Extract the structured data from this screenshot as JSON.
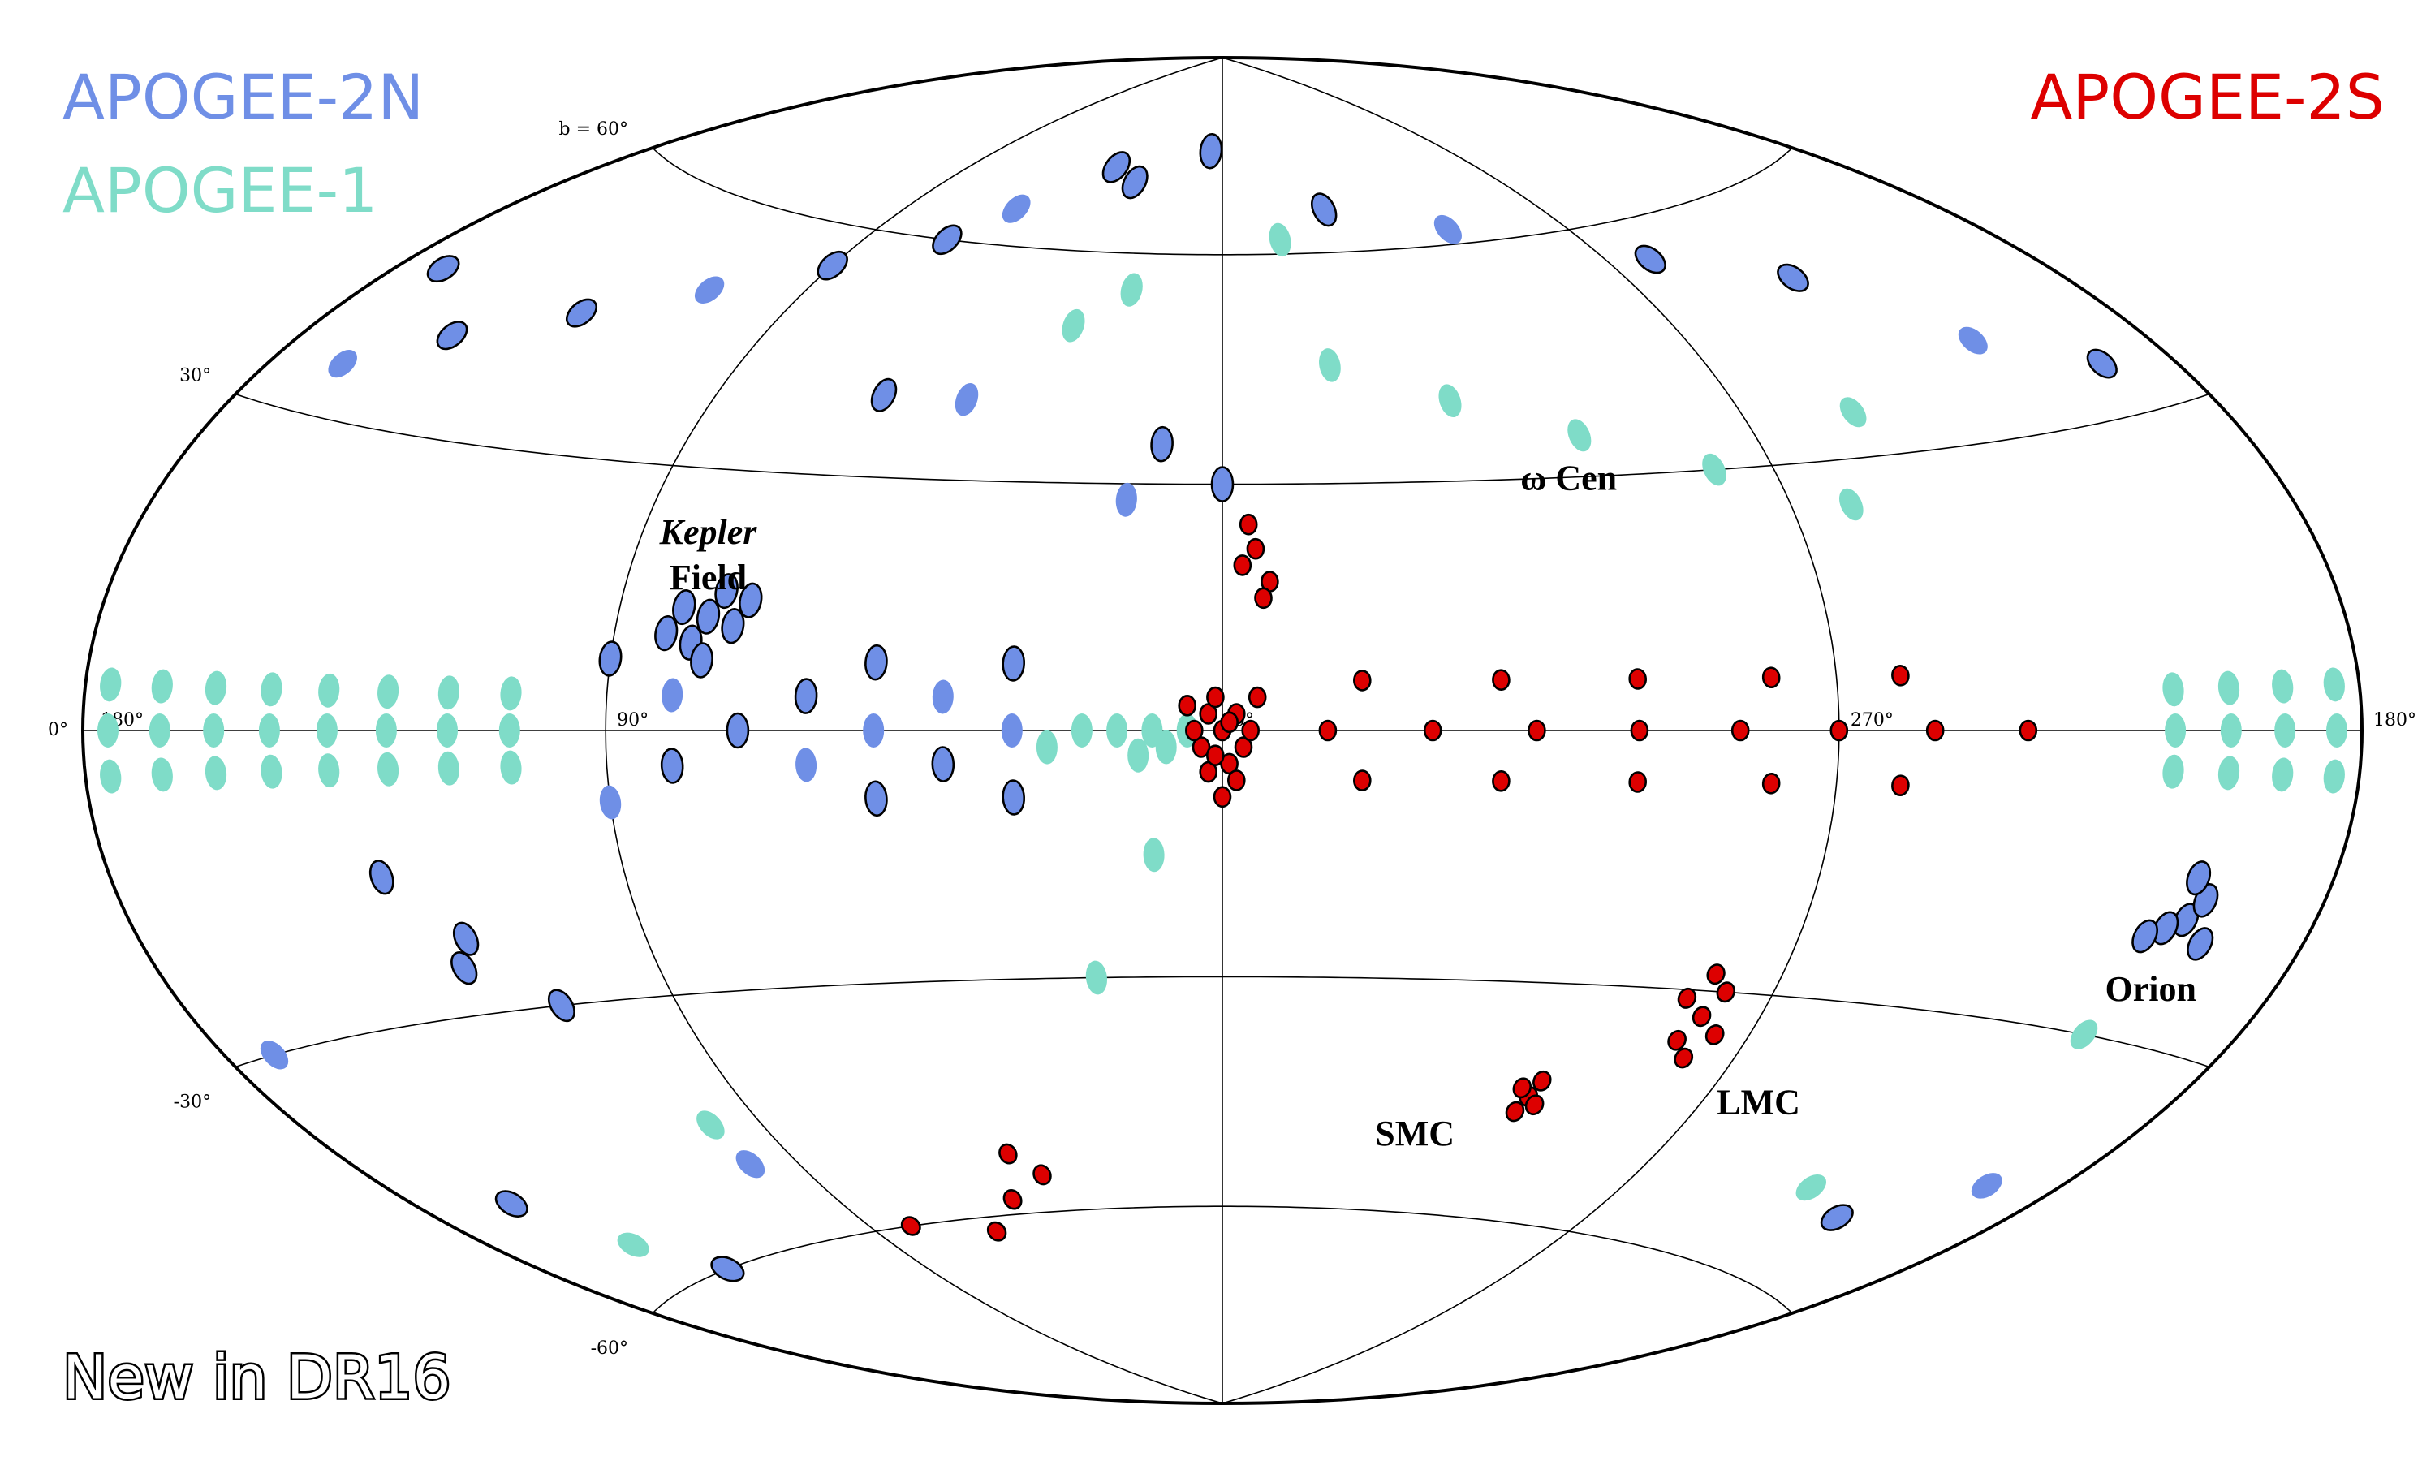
{
  "chart_data": {
    "type": "sky-map",
    "projection": "hammer",
    "lat_ticks": [
      {
        "value": 60,
        "label": "b = 60°"
      },
      {
        "value": 30,
        "label": "30°"
      },
      {
        "value": 0,
        "label": "0°"
      },
      {
        "value": -30,
        "label": "-30°"
      },
      {
        "value": -60,
        "label": "-60°"
      }
    ],
    "lon_ticks": [
      {
        "value": 180,
        "label": "180°"
      },
      {
        "value": 90,
        "label": "90°"
      },
      {
        "value": 0,
        "label": "0°"
      },
      {
        "value": 270,
        "label": "270°"
      },
      {
        "value": 180,
        "label": "180°"
      }
    ],
    "series": [
      {
        "name": "APOGEE-2N",
        "color": "#6f8fe6",
        "l": [
          76,
          72,
          80,
          74,
          78,
          70,
          82,
          76,
          30,
          30,
          30,
          40,
          40,
          50,
          50,
          50,
          60,
          60,
          70,
          80,
          80,
          90,
          90,
          205,
          208,
          211,
          203,
          206,
          200,
          30,
          40,
          60,
          70,
          90,
          110,
          130,
          150,
          165,
          170,
          195,
          215,
          235,
          260,
          300,
          330,
          5,
          15,
          10,
          0,
          45,
          60,
          120,
          123,
          100,
          140,
          160,
          195,
          215,
          170,
          130,
          110
        ],
        "b": [
          13,
          12,
          14,
          16,
          10,
          15,
          11,
          8,
          8,
          0,
          -8,
          4,
          -4,
          8,
          0,
          -8,
          4,
          -4,
          0,
          4,
          -4,
          8,
          -8,
          -18,
          -19,
          -20,
          -16,
          -14,
          -20,
          70,
          72,
          65,
          60,
          55,
          50,
          45,
          40,
          35,
          45,
          35,
          40,
          50,
          55,
          62,
          66,
          75,
          28,
          35,
          30,
          40,
          40,
          -22,
          -25,
          -50,
          -60,
          -48,
          -45,
          -52,
          -30,
          -15,
          -30
        ],
        "new": [
          true,
          true,
          true,
          true,
          true,
          true,
          true,
          true,
          true,
          false,
          true,
          false,
          true,
          true,
          false,
          true,
          true,
          false,
          true,
          false,
          true,
          true,
          false,
          true,
          true,
          true,
          true,
          true,
          true,
          true,
          true,
          false,
          true,
          true,
          false,
          true,
          true,
          false,
          true,
          true,
          false,
          true,
          true,
          false,
          true,
          true,
          false,
          true,
          true,
          false,
          true,
          true,
          true,
          false,
          true,
          true,
          false,
          true,
          false,
          true,
          true
        ]
      },
      {
        "name": "APOGEE-1",
        "color": "#7fdcc8",
        "l": [
          175,
          175,
          175,
          165,
          165,
          165,
          155,
          155,
          155,
          145,
          145,
          145,
          135,
          135,
          135,
          125,
          125,
          125,
          115,
          115,
          115,
          105,
          105,
          105,
          185,
          185,
          185,
          195,
          195,
          195,
          205,
          205,
          205,
          215,
          215,
          215,
          5,
          10,
          15,
          20,
          25,
          8,
          12,
          340,
          320,
          300,
          280,
          260,
          20,
          30,
          100,
          150,
          210,
          230,
          250,
          345,
          10,
          20
        ],
        "b": [
          4,
          0,
          -4,
          4,
          0,
          -4,
          4,
          0,
          -4,
          4,
          0,
          -4,
          4,
          0,
          -4,
          4,
          0,
          -4,
          4,
          0,
          -4,
          4,
          0,
          -4,
          4,
          0,
          -4,
          4,
          0,
          -4,
          4,
          0,
          -4,
          4,
          0,
          -4,
          0,
          0,
          0,
          0,
          -2,
          -2,
          -3,
          45,
          40,
          35,
          30,
          25,
          55,
          50,
          -45,
          -55,
          -30,
          -50,
          35,
          62,
          -15,
          -30
        ],
        "new": [
          false,
          false,
          false,
          false,
          false,
          false,
          false,
          false,
          false,
          false,
          false,
          false,
          false,
          false,
          false,
          false,
          false,
          false,
          false,
          false,
          false,
          false,
          false,
          false,
          false,
          false,
          false,
          false,
          false,
          false,
          false,
          false,
          false,
          false,
          false,
          false,
          false,
          false,
          false,
          false,
          false,
          false,
          false,
          false,
          false,
          false,
          false,
          false,
          false,
          false,
          false,
          false,
          false,
          false,
          false,
          false,
          false,
          false
        ]
      },
      {
        "name": "APOGEE-2S",
        "color": "#dd0000",
        "l": [
          0,
          2,
          358,
          3,
          357,
          1,
          359,
          4,
          356,
          2,
          358,
          0,
          5,
          355,
          1,
          359,
          345,
          330,
          315,
          300,
          285,
          270,
          255,
          240,
          340,
          320,
          300,
          280,
          260,
          340,
          320,
          300,
          280,
          260,
          355,
          357,
          353,
          356,
          354,
          280,
          278,
          282,
          276,
          284,
          279,
          281,
          303,
          301,
          305,
          302,
          304,
          40,
          45,
          50,
          60,
          80
        ],
        "b": [
          0,
          2,
          2,
          -2,
          -2,
          4,
          -4,
          0,
          0,
          -5,
          -6,
          -8,
          3,
          4,
          -3,
          1,
          0,
          0,
          0,
          0,
          0,
          0,
          0,
          0,
          6,
          6,
          6,
          6,
          6,
          -6,
          -6,
          -6,
          -6,
          -6,
          22,
          20,
          18,
          25,
          16,
          -33,
          -30,
          -36,
          -35,
          -31,
          -38,
          -28,
          -44,
          -45,
          -43,
          -42,
          -46,
          -55,
          -52,
          -58,
          -62,
          -60
        ],
        "new": [
          true,
          true,
          true,
          true,
          true,
          true,
          true,
          true,
          true,
          true,
          true,
          true,
          true,
          true,
          true,
          true,
          true,
          true,
          true,
          true,
          true,
          true,
          true,
          true,
          true,
          true,
          true,
          true,
          true,
          true,
          true,
          true,
          true,
          true,
          true,
          true,
          true,
          true,
          true,
          true,
          true,
          true,
          true,
          true,
          true,
          true,
          true,
          true,
          true,
          true,
          true,
          true,
          true,
          true,
          true,
          true
        ]
      }
    ],
    "regions": [
      {
        "label": "Kepler",
        "l": 76,
        "b": 13
      },
      {
        "label": "Field",
        "l": 76,
        "b": 13
      },
      {
        "label": "ω Cen",
        "l": 309,
        "b": 15
      },
      {
        "label": "SMC",
        "l": 303,
        "b": -44
      },
      {
        "label": "LMC",
        "l": 280,
        "b": -33
      },
      {
        "label": "Orion",
        "l": 209,
        "b": -19
      }
    ],
    "note": "New in DR16"
  }
}
